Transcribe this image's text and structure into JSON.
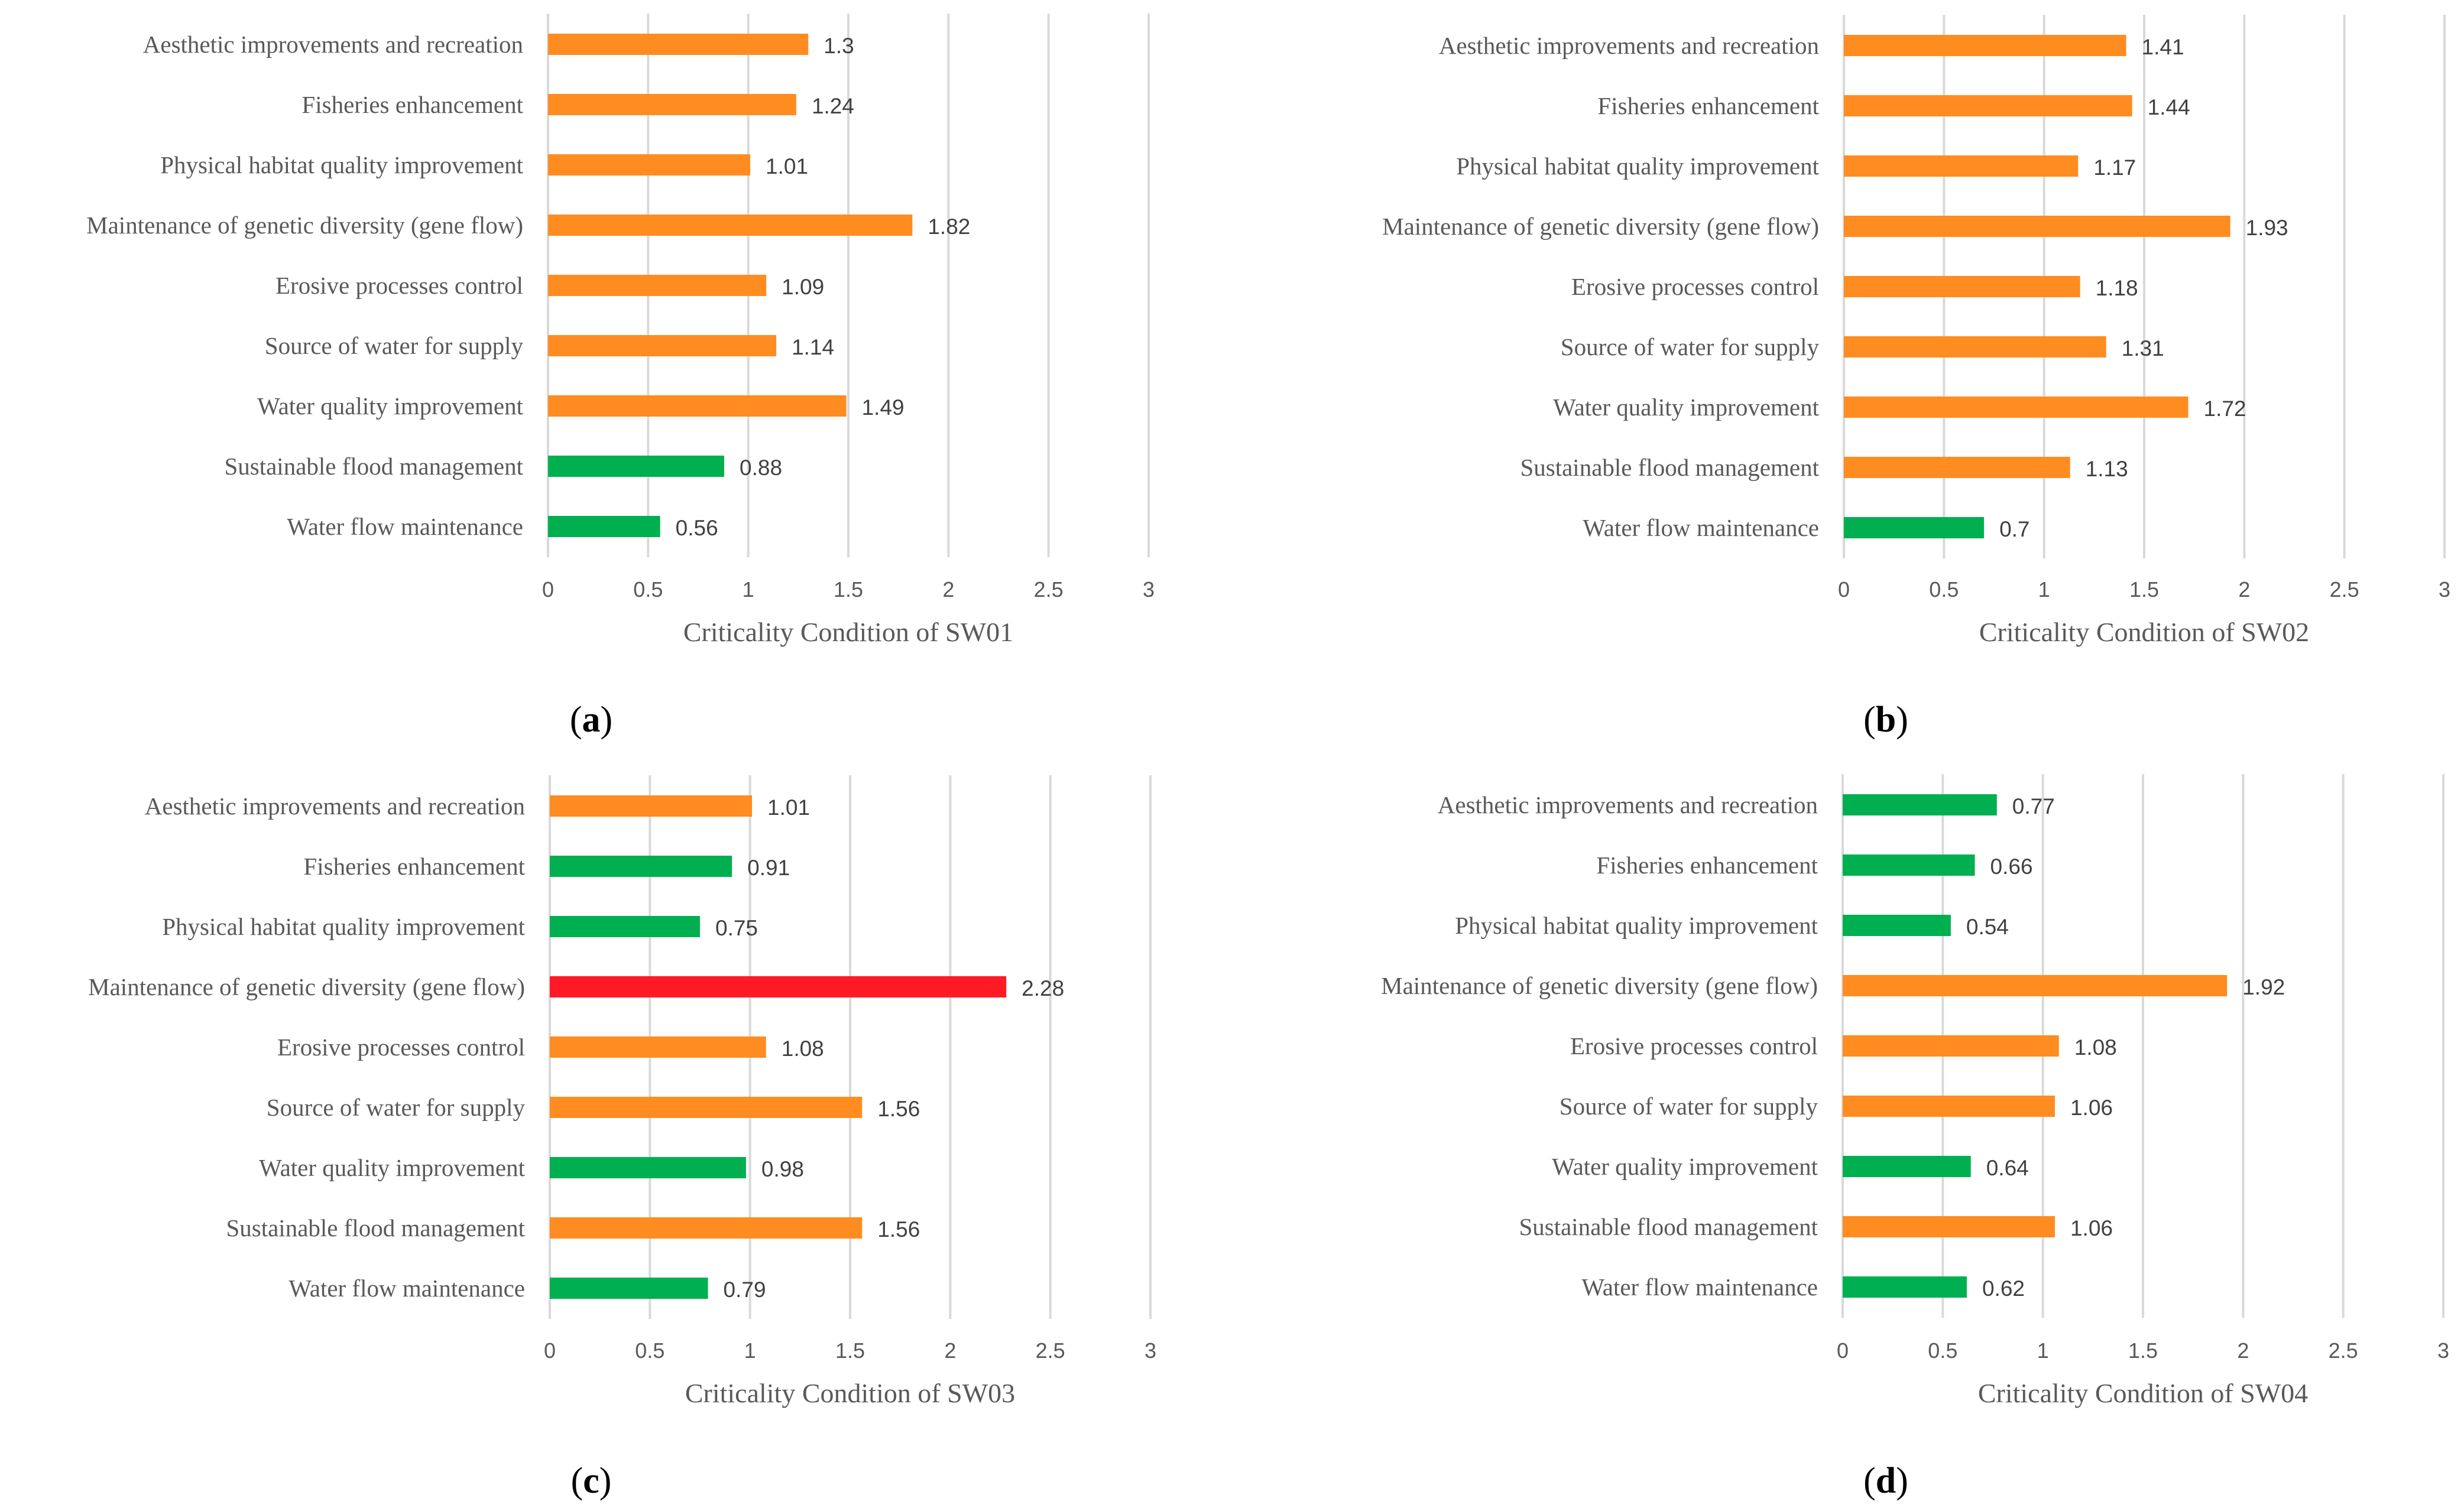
{
  "colors": {
    "green": "#00b050",
    "orange": "#ff8c21",
    "red": "#ff1a25"
  },
  "chart_data": [
    {
      "type": "bar",
      "orientation": "horizontal",
      "panel": "a",
      "xlabel": "Criticality Condition of SW01",
      "xlim": [
        0,
        3
      ],
      "xticks": [
        "0",
        "0.5",
        "1",
        "1.5",
        "2",
        "2.5",
        "3"
      ],
      "grid": true,
      "categories": [
        "Aesthetic improvements and recreation",
        "Fisheries enhancement",
        "Physical habitat quality improvement",
        "Maintenance of genetic diversity (gene flow)",
        "Erosive processes control",
        "Source of water for supply",
        "Water quality improvement",
        "Sustainable flood management",
        "Water flow maintenance"
      ],
      "values": [
        1.3,
        1.24,
        1.01,
        1.82,
        1.09,
        1.14,
        1.49,
        0.88,
        0.56
      ],
      "value_labels": [
        "1.3",
        "1.24",
        "1.01",
        "1.82",
        "1.09",
        "1.14",
        "1.49",
        "0.88",
        "0.56"
      ],
      "bar_colors": [
        "orange",
        "orange",
        "orange",
        "orange",
        "orange",
        "orange",
        "orange",
        "green",
        "green"
      ]
    },
    {
      "type": "bar",
      "orientation": "horizontal",
      "panel": "b",
      "xlabel": "Criticality Condition of SW02",
      "xlim": [
        0,
        3
      ],
      "xticks": [
        "0",
        "0.5",
        "1",
        "1.5",
        "2",
        "2.5",
        "3"
      ],
      "grid": true,
      "categories": [
        "Aesthetic improvements and recreation",
        "Fisheries enhancement",
        "Physical habitat quality improvement",
        "Maintenance of genetic diversity (gene flow)",
        "Erosive processes control",
        "Source of water for supply",
        "Water quality improvement",
        "Sustainable flood management",
        "Water flow maintenance"
      ],
      "values": [
        1.41,
        1.44,
        1.17,
        1.93,
        1.18,
        1.31,
        1.72,
        1.13,
        0.7
      ],
      "value_labels": [
        "1.41",
        "1.44",
        "1.17",
        "1.93",
        "1.18",
        "1.31",
        "1.72",
        "1.13",
        "0.7"
      ],
      "bar_colors": [
        "orange",
        "orange",
        "orange",
        "orange",
        "orange",
        "orange",
        "orange",
        "orange",
        "green"
      ]
    },
    {
      "type": "bar",
      "orientation": "horizontal",
      "panel": "c",
      "xlabel": "Criticality Condition of SW03",
      "xlim": [
        0,
        3
      ],
      "xticks": [
        "0",
        "0.5",
        "1",
        "1.5",
        "2",
        "2.5",
        "3"
      ],
      "grid": true,
      "categories": [
        "Aesthetic improvements and recreation",
        "Fisheries enhancement",
        "Physical habitat quality improvement",
        "Maintenance of genetic diversity (gene flow)",
        "Erosive processes control",
        "Source of water for supply",
        "Water quality improvement",
        "Sustainable flood management",
        "Water flow maintenance"
      ],
      "values": [
        1.01,
        0.91,
        0.75,
        2.28,
        1.08,
        1.56,
        0.98,
        1.56,
        0.79
      ],
      "value_labels": [
        "1.01",
        "0.91",
        "0.75",
        "2.28",
        "1.08",
        "1.56",
        "0.98",
        "1.56",
        "0.79"
      ],
      "bar_colors": [
        "orange",
        "green",
        "green",
        "red",
        "orange",
        "orange",
        "green",
        "orange",
        "green"
      ]
    },
    {
      "type": "bar",
      "orientation": "horizontal",
      "panel": "d",
      "xlabel": "Criticality Condition of SW04",
      "xlim": [
        0,
        3
      ],
      "xticks": [
        "0",
        "0.5",
        "1",
        "1.5",
        "2",
        "2.5",
        "3"
      ],
      "grid": true,
      "categories": [
        "Aesthetic improvements and recreation",
        "Fisheries enhancement",
        "Physical habitat quality improvement",
        "Maintenance of genetic diversity (gene flow)",
        "Erosive processes control",
        "Source of water for supply",
        "Water quality improvement",
        "Sustainable flood management",
        "Water flow maintenance"
      ],
      "values": [
        0.77,
        0.66,
        0.54,
        1.92,
        1.08,
        1.06,
        0.64,
        1.06,
        0.62
      ],
      "value_labels": [
        "0.77",
        "0.66",
        "0.54",
        "1.92",
        "1.08",
        "1.06",
        "0.64",
        "1.06",
        "0.62"
      ],
      "bar_colors": [
        "green",
        "green",
        "green",
        "orange",
        "orange",
        "orange",
        "green",
        "orange",
        "green"
      ]
    }
  ]
}
